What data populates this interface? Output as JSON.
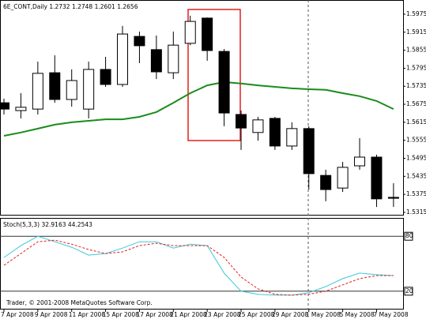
{
  "chart_data": [
    {
      "type": "candlestick",
      "title": "6E_CONT,Daily  1.2732 1.2748 1.2601 1.2656",
      "categories": [
        "7 Apr 2008",
        null,
        "9 Apr 2008",
        null,
        "11 Apr 2008",
        null,
        "15 Apr 2008",
        null,
        "17 Apr 2008",
        null,
        "21 Apr 2008",
        null,
        "23 Apr 2008",
        null,
        "25 Apr 2008",
        null,
        "29 Apr 2008",
        null,
        "1 May 2008",
        null,
        "5 May 2008",
        null,
        "7 May 2008",
        null
      ],
      "open": [
        1.568,
        1.5654,
        1.5659,
        1.578,
        1.5691,
        1.5659,
        1.5791,
        1.5741,
        1.5901,
        1.5857,
        1.578,
        1.5878,
        1.5962,
        1.5851,
        1.5641,
        1.5581,
        1.5628,
        1.5536,
        1.5594,
        1.5438,
        1.5396,
        1.547,
        1.5499,
        1.5365
      ],
      "high": [
        1.5694,
        1.5712,
        1.5817,
        1.5838,
        1.5791,
        1.5817,
        1.5833,
        1.5936,
        1.5917,
        1.5904,
        1.5917,
        1.597,
        1.5964,
        1.5859,
        1.5654,
        1.5633,
        1.5633,
        1.5615,
        1.5602,
        1.5457,
        1.5483,
        1.5562,
        1.5507,
        1.5412
      ],
      "low": [
        1.5641,
        1.5628,
        1.5641,
        1.568,
        1.5667,
        1.5628,
        1.5733,
        1.5733,
        1.5812,
        1.5759,
        1.5759,
        1.5872,
        1.582,
        1.5602,
        1.5523,
        1.5554,
        1.5523,
        1.5523,
        1.5391,
        1.5352,
        1.5383,
        1.5457,
        1.5333,
        1.5333
      ],
      "close": [
        1.5659,
        1.5665,
        1.5778,
        1.5691,
        1.5754,
        1.5791,
        1.5741,
        1.5909,
        1.587,
        1.5783,
        1.5872,
        1.5951,
        1.5854,
        1.5646,
        1.5596,
        1.5623,
        1.5536,
        1.5594,
        1.5444,
        1.5391,
        1.5465,
        1.5499,
        1.536,
        1.5362
      ],
      "moving_average": {
        "color": "#1a8c1a",
        "values": [
          1.557,
          1.5581,
          1.5594,
          1.5607,
          1.5615,
          1.562,
          1.5625,
          1.5625,
          1.5633,
          1.5649,
          1.568,
          1.5712,
          1.5738,
          1.5749,
          1.5744,
          1.5738,
          1.5733,
          1.5728,
          1.5725,
          1.5723,
          1.5712,
          1.5702,
          1.5686,
          1.5659
        ]
      },
      "ylim": [
        1.5307,
        1.6017
      ],
      "yticks": [
        1.5975,
        1.5915,
        1.5855,
        1.5795,
        1.5735,
        1.5675,
        1.5615,
        1.5555,
        1.5495,
        1.5435,
        1.5375,
        1.5315
      ]
    },
    {
      "type": "line",
      "title": "Stoch(5,3,3) 32.9163 44.2543",
      "series": [
        {
          "color": "#3cc8d8",
          "values": [
            56.9,
            69.7,
            80,
            74,
            68,
            59.4,
            61.1,
            67.1,
            74,
            74,
            67.1,
            71.4,
            69.7,
            39.7,
            20,
            16.6,
            15.7,
            15.7,
            18.3,
            25.1,
            33.7,
            39.7,
            38,
            37.1
          ]
        },
        {
          "color": "#e02020",
          "dashed": true,
          "values": [
            48.3,
            61.1,
            74,
            75.7,
            71.4,
            65.4,
            61.1,
            62.9,
            69.7,
            72.3,
            69.7,
            69.7,
            69.7,
            56.9,
            35.4,
            22.6,
            16.6,
            15.7,
            16.6,
            20,
            26.9,
            33.7,
            37.1,
            37.1
          ]
        }
      ],
      "ylim": [
        0,
        100
      ],
      "yticks": [
        80,
        20
      ],
      "grid": true,
      "copyright": "Trader, © 2001-2008 MetaQuotes Software Corp."
    }
  ]
}
